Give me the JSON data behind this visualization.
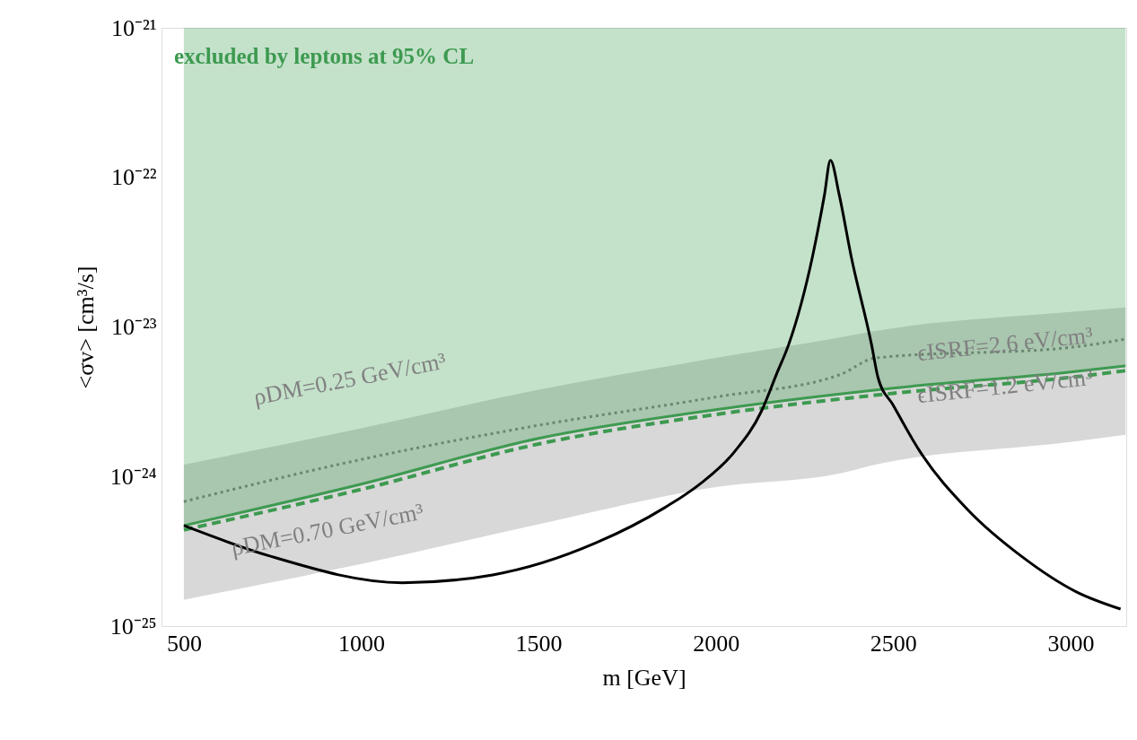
{
  "chart_data": {
    "type": "line",
    "xlabel": "m [GeV]",
    "ylabel": "<σv> [cm³/s]",
    "xlim": [
      437,
      3157
    ],
    "xticks": [
      500,
      1000,
      1500,
      2000,
      2500,
      3000
    ],
    "ylim": [
      1e-25,
      1e-21
    ],
    "log": "y",
    "yticks": [
      {
        "value": 1e-25,
        "label": "10⁻²⁵"
      },
      {
        "value": 1e-24,
        "label": "10⁻²⁴"
      },
      {
        "value": 1e-23,
        "label": "10⁻²³"
      },
      {
        "value": 1e-22,
        "label": "10⁻²²"
      },
      {
        "value": 1e-21,
        "label": "10⁻²¹"
      }
    ],
    "grid": false,
    "series": [
      {
        "color": "#7f7f7f",
        "line_style": "dotted",
        "x": [
          500,
          1000,
          1500,
          2000,
          2350,
          2450,
          3000,
          3155
        ],
        "values": [
          6.8e-25,
          1.3e-24,
          2.2e-24,
          3.4e-24,
          4.8e-24,
          6.2e-24,
          7.3e-24,
          8.3e-24
        ],
        "lower": [
          1.5e-25,
          2.6e-25,
          4.8e-25,
          8.5e-25,
          1.05e-24,
          1.2e-24,
          1.7e-24,
          1.9e-24
        ],
        "upper": [
          1.2e-24,
          2.1e-24,
          3.8e-24,
          6.2e-24,
          8.5e-24,
          9.4e-24,
          1.26e-23,
          1.35e-23
        ]
      },
      {
        "color": "#3d9a50",
        "line_style": "dashed",
        "x": [
          500,
          1000,
          1500,
          2000,
          2500,
          3000,
          3155
        ],
        "values": [
          4.4e-25,
          8.2e-25,
          1.65e-24,
          2.6e-24,
          3.6e-24,
          4.6e-24,
          5.1e-24
        ]
      },
      {
        "color": "#3d9a50",
        "line_style": "solid",
        "x": [
          500,
          1000,
          1500,
          2000,
          2500,
          3000,
          3155
        ],
        "values": [
          4.7e-25,
          8.9e-25,
          1.8e-24,
          2.8e-24,
          3.9e-24,
          5e-24,
          5.5e-24
        ],
        "lower": [
          4.7e-25,
          8.9e-25,
          1.8e-24,
          2.8e-24,
          3.9e-24,
          5e-24,
          5.5e-24
        ],
        "upper": [
          1e-21,
          1e-21,
          1e-21,
          1e-21,
          1e-21,
          1e-21,
          1e-21
        ]
      },
      {
        "color": "#000000",
        "line_style": "solid",
        "x": [
          500,
          740,
          1116,
          1371,
          1662,
          1856,
          1955,
          2051,
          2129,
          2172,
          2205,
          2273,
          2306,
          2323,
          2348,
          2381,
          2439,
          2457,
          2500,
          2573,
          2710,
          2864,
          3015,
          3141
        ],
        "values": [
          4.7e-25,
          2.95e-25,
          1.95e-25,
          2.2e-25,
          3.6e-25,
          6.2e-25,
          8.9e-25,
          1.45e-24,
          2.75e-24,
          4.9e-24,
          7.6e-24,
          3e-23,
          7.6e-23,
          1.3e-22,
          7.6e-23,
          3e-23,
          7.6e-24,
          4.6e-24,
          3e-24,
          1.5e-24,
          6e-25,
          2.9e-25,
          1.7e-25,
          1.3e-25
        ]
      }
    ],
    "annotations": [
      "excluded by leptons at 95% CL",
      "ρDM=0.25 GeV/cm³",
      "ρDM=0.70 GeV/cm³",
      "ϵISRF=2.6 eV/cm³",
      "ϵISRF=1.2 eV/cm³"
    ]
  }
}
